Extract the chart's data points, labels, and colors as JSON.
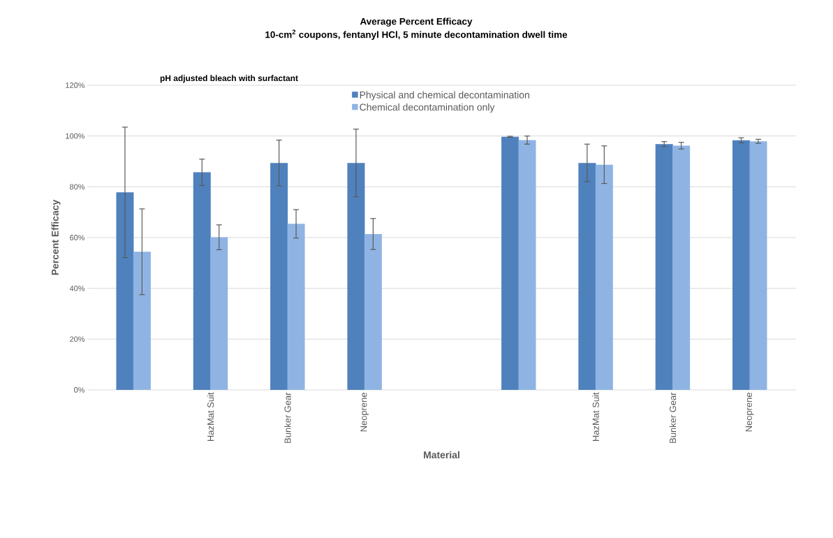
{
  "chart_data": {
    "type": "bar",
    "title": "Average Percent Efficacy",
    "subtitle": "10-cm$^{2}$ coupons, fentanyl HCl, 5 minute decontamination  dwell time",
    "xlabel": "Material",
    "ylabel": "Percent Efficacy",
    "annotations": [
      "pH adjusted bleach with surfactant"
    ],
    "categories": [
      null,
      "HazMat Suit",
      "Bunker Gear",
      "Neoprene",
      null,
      null,
      "HazMat Suit",
      "Bunker Gear",
      "Neoprene"
    ],
    "series": [
      {
        "name": "Physical and chemical decontamination",
        "color": "#4f81bd",
        "values": [
          77.8,
          85.7,
          89.4,
          89.4,
          null,
          99.7,
          89.4,
          96.8,
          98.3
        ],
        "errors": [
          25.7,
          5.2,
          9.0,
          13.3,
          null,
          0.2,
          7.4,
          1.0,
          1.0
        ]
      },
      {
        "name": "Chemical decontamination only",
        "color": "#8fb4e3",
        "values": [
          54.4,
          60.1,
          65.4,
          61.4,
          null,
          98.4,
          88.7,
          96.2,
          97.9
        ],
        "errors": [
          16.9,
          4.9,
          5.6,
          6.1,
          null,
          1.6,
          7.4,
          1.3,
          0.8
        ]
      }
    ],
    "ylim": [
      0,
      120
    ],
    "yticks": [
      {
        "value": 0,
        "label": "0%"
      },
      {
        "value": 20,
        "label": "20%"
      },
      {
        "value": 40,
        "label": "40%"
      },
      {
        "value": 60,
        "label": "60%"
      },
      {
        "value": 80,
        "label": "80%"
      },
      {
        "value": 100,
        "label": "100%"
      },
      {
        "value": 120,
        "label": "120%"
      }
    ],
    "grid": "y",
    "legend": "top"
  }
}
